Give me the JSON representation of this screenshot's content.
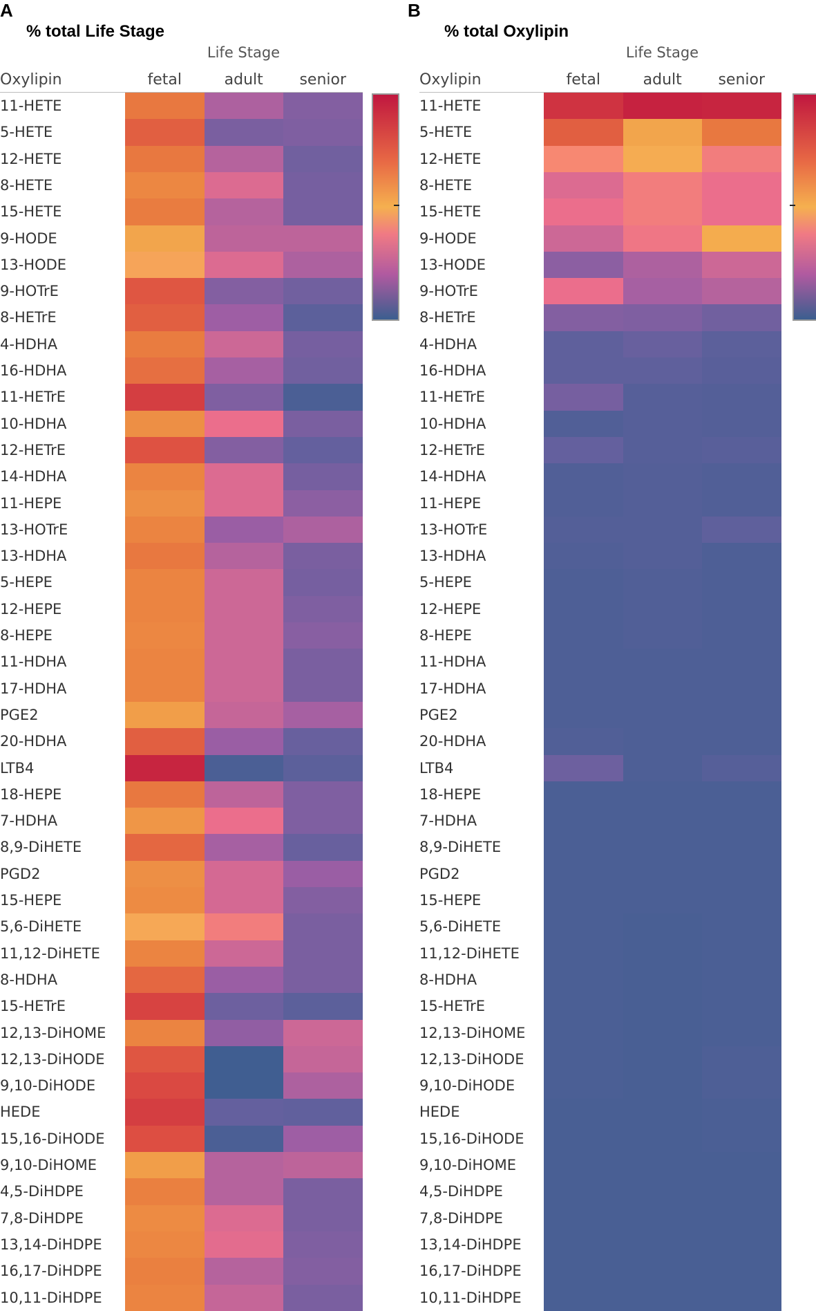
{
  "panels": [
    {
      "letter": "A",
      "title": "% total Life Stage",
      "x_title": "Life Stage",
      "row_header": "Oxylipin"
    },
    {
      "letter": "B",
      "title": "% total Oxylipin",
      "x_title": "Life Stage",
      "row_header": "Oxylipin"
    }
  ],
  "chart_data": [
    {
      "type": "heatmap",
      "title": "% total Life Stage",
      "xlabel": "Life Stage",
      "ylabel": "Oxylipin",
      "columns": [
        "fetal",
        "adult",
        "senior"
      ],
      "rows": [
        "11-HETE",
        "5-HETE",
        "12-HETE",
        "8-HETE",
        "15-HETE",
        "9-HODE",
        "13-HODE",
        "9-HOTrE",
        "8-HETrE",
        "4-HDHA",
        "16-HDHA",
        "11-HETrE",
        "10-HDHA",
        "12-HETrE",
        "14-HDHA",
        "11-HEPE",
        "13-HOTrE",
        "13-HDHA",
        "5-HEPE",
        "12-HEPE",
        "8-HEPE",
        "11-HDHA",
        "17-HDHA",
        "PGE2",
        "20-HDHA",
        "LTB4",
        "18-HEPE",
        "7-HDHA",
        "8,9-DiHETE",
        "PGD2",
        "15-HEPE",
        "5,6-DiHETE",
        "11,12-DiHETE",
        "8-HDHA",
        "15-HETrE",
        "12,13-DiHOME",
        "12,13-DiHODE",
        "9,10-DiHODE",
        "HEDE",
        "15,16-DiHODE",
        "9,10-DiHOME",
        "4,5-DiHDPE",
        "7,8-DiHDPE",
        "13,14-DiHDPE",
        "16,17-DiHDPE",
        "10,11-DiHDPE"
      ],
      "values": [
        [
          0.7,
          0.3,
          0.22
        ],
        [
          0.76,
          0.2,
          0.21
        ],
        [
          0.7,
          0.31,
          0.18
        ],
        [
          0.66,
          0.36,
          0.19
        ],
        [
          0.69,
          0.31,
          0.19
        ],
        [
          0.58,
          0.32,
          0.32
        ],
        [
          0.52,
          0.36,
          0.3
        ],
        [
          0.78,
          0.22,
          0.18
        ],
        [
          0.76,
          0.28,
          0.12
        ],
        [
          0.69,
          0.34,
          0.19
        ],
        [
          0.72,
          0.29,
          0.18
        ],
        [
          0.86,
          0.21,
          0.06
        ],
        [
          0.64,
          0.38,
          0.2
        ],
        [
          0.79,
          0.22,
          0.15
        ],
        [
          0.67,
          0.36,
          0.19
        ],
        [
          0.64,
          0.36,
          0.24
        ],
        [
          0.67,
          0.27,
          0.3
        ],
        [
          0.7,
          0.31,
          0.2
        ],
        [
          0.67,
          0.34,
          0.19
        ],
        [
          0.67,
          0.34,
          0.21
        ],
        [
          0.66,
          0.34,
          0.23
        ],
        [
          0.67,
          0.34,
          0.2
        ],
        [
          0.67,
          0.34,
          0.2
        ],
        [
          0.6,
          0.33,
          0.29
        ],
        [
          0.76,
          0.27,
          0.16
        ],
        [
          0.95,
          0.06,
          0.12
        ],
        [
          0.7,
          0.32,
          0.21
        ],
        [
          0.62,
          0.38,
          0.21
        ],
        [
          0.74,
          0.29,
          0.16
        ],
        [
          0.64,
          0.35,
          0.27
        ],
        [
          0.65,
          0.35,
          0.22
        ],
        [
          0.53,
          0.42,
          0.2
        ],
        [
          0.67,
          0.34,
          0.2
        ],
        [
          0.74,
          0.27,
          0.2
        ],
        [
          0.84,
          0.17,
          0.12
        ],
        [
          0.67,
          0.25,
          0.34
        ],
        [
          0.78,
          0.02,
          0.33
        ],
        [
          0.82,
          0.02,
          0.3
        ],
        [
          0.86,
          0.15,
          0.14
        ],
        [
          0.8,
          0.06,
          0.28
        ],
        [
          0.6,
          0.31,
          0.32
        ],
        [
          0.68,
          0.31,
          0.2
        ],
        [
          0.65,
          0.36,
          0.2
        ],
        [
          0.66,
          0.37,
          0.21
        ],
        [
          0.68,
          0.31,
          0.22
        ],
        [
          0.67,
          0.33,
          0.2
        ]
      ]
    },
    {
      "type": "heatmap",
      "title": "% total Oxylipin",
      "xlabel": "Life Stage",
      "ylabel": "Oxylipin",
      "columns": [
        "fetal",
        "adult",
        "senior"
      ],
      "rows": [
        "11-HETE",
        "5-HETE",
        "12-HETE",
        "8-HETE",
        "15-HETE",
        "9-HODE",
        "13-HODE",
        "9-HOTrE",
        "8-HETrE",
        "4-HDHA",
        "16-HDHA",
        "11-HETrE",
        "10-HDHA",
        "12-HETrE",
        "14-HDHA",
        "11-HEPE",
        "13-HOTrE",
        "13-HDHA",
        "5-HEPE",
        "12-HEPE",
        "8-HEPE",
        "11-HDHA",
        "17-HDHA",
        "PGE2",
        "20-HDHA",
        "LTB4",
        "18-HEPE",
        "7-HDHA",
        "8,9-DiHETE",
        "PGD2",
        "15-HEPE",
        "5,6-DiHETE",
        "11,12-DiHETE",
        "8-HDHA",
        "15-HETrE",
        "12,13-DiHOME",
        "12,13-DiHODE",
        "9,10-DiHODE",
        "HEDE",
        "15,16-DiHODE",
        "9,10-DiHOME",
        "4,5-DiHDPE",
        "7,8-DiHDPE",
        "13,14-DiHDPE",
        "16,17-DiHDPE",
        "10,11-DiHDPE"
      ],
      "values": [
        [
          0.9,
          0.96,
          0.95
        ],
        [
          0.76,
          0.58,
          0.7
        ],
        [
          0.45,
          0.54,
          0.42
        ],
        [
          0.36,
          0.42,
          0.38
        ],
        [
          0.38,
          0.42,
          0.38
        ],
        [
          0.34,
          0.4,
          0.56
        ],
        [
          0.24,
          0.3,
          0.34
        ],
        [
          0.38,
          0.29,
          0.31
        ],
        [
          0.22,
          0.21,
          0.18
        ],
        [
          0.13,
          0.16,
          0.12
        ],
        [
          0.13,
          0.13,
          0.11
        ],
        [
          0.19,
          0.1,
          0.09
        ],
        [
          0.08,
          0.1,
          0.09
        ],
        [
          0.15,
          0.1,
          0.11
        ],
        [
          0.08,
          0.09,
          0.08
        ],
        [
          0.08,
          0.09,
          0.08
        ],
        [
          0.09,
          0.09,
          0.13
        ],
        [
          0.08,
          0.09,
          0.07
        ],
        [
          0.07,
          0.08,
          0.07
        ],
        [
          0.07,
          0.08,
          0.07
        ],
        [
          0.07,
          0.08,
          0.07
        ],
        [
          0.07,
          0.07,
          0.07
        ],
        [
          0.07,
          0.07,
          0.07
        ],
        [
          0.07,
          0.07,
          0.07
        ],
        [
          0.08,
          0.07,
          0.07
        ],
        [
          0.17,
          0.07,
          0.1
        ],
        [
          0.06,
          0.06,
          0.06
        ],
        [
          0.06,
          0.06,
          0.06
        ],
        [
          0.06,
          0.06,
          0.06
        ],
        [
          0.06,
          0.06,
          0.06
        ],
        [
          0.06,
          0.06,
          0.06
        ],
        [
          0.06,
          0.05,
          0.06
        ],
        [
          0.06,
          0.05,
          0.06
        ],
        [
          0.06,
          0.05,
          0.06
        ],
        [
          0.06,
          0.05,
          0.06
        ],
        [
          0.06,
          0.05,
          0.06
        ],
        [
          0.06,
          0.05,
          0.07
        ],
        [
          0.06,
          0.05,
          0.07
        ],
        [
          0.05,
          0.05,
          0.06
        ],
        [
          0.05,
          0.05,
          0.06
        ],
        [
          0.05,
          0.05,
          0.05
        ],
        [
          0.05,
          0.05,
          0.05
        ],
        [
          0.05,
          0.05,
          0.05
        ],
        [
          0.05,
          0.05,
          0.05
        ],
        [
          0.05,
          0.05,
          0.05
        ],
        [
          0.05,
          0.05,
          0.05
        ]
      ]
    }
  ]
}
